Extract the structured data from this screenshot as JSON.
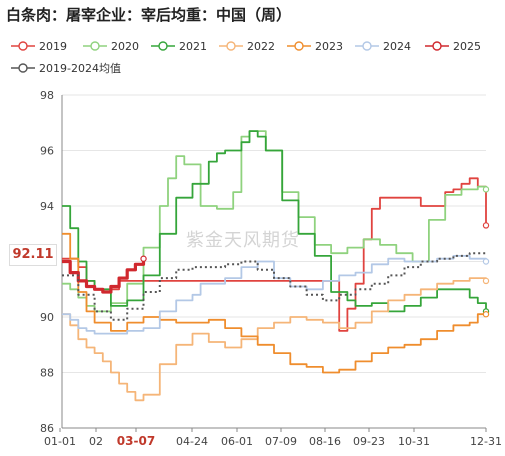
{
  "title": "白条肉：屠宰企业：宰后均重：中国（周）",
  "watermark": "紫金天风期货",
  "current_value_label": "92.11",
  "chart_data": {
    "type": "line",
    "y_range": [
      86,
      98
    ],
    "y_ticks": [
      "86",
      "88",
      "90",
      "92",
      "94",
      "96",
      "98"
    ],
    "x_ticks": [
      "01-01",
      "02",
      "03-07",
      "04-24",
      "06-01",
      "07-09",
      "08-16",
      "09-23",
      "10-31",
      "12-31"
    ],
    "highlight_x_tick": "03-07",
    "legend_position": "top",
    "series": [
      {
        "name": "2019",
        "color": "#e0433f",
        "style": "solid",
        "x": [
          0,
          2,
          3,
          4,
          5,
          6,
          7,
          34,
          35,
          36,
          37,
          38,
          39,
          40,
          42,
          44,
          46,
          47,
          48,
          49,
          50,
          51,
          52
        ],
        "y": [
          92.1,
          91.8,
          91.3,
          91.0,
          90.9,
          91.0,
          91.3,
          89.5,
          90.3,
          91.2,
          92.8,
          93.9,
          94.3,
          94.3,
          94.3,
          94.0,
          94.0,
          94.5,
          94.6,
          94.8,
          95.0,
          94.7,
          93.3
        ]
      },
      {
        "name": "2020",
        "color": "#8fd27e",
        "style": "solid",
        "x": [
          0,
          1,
          2,
          3,
          4,
          6,
          8,
          10,
          12,
          13,
          14,
          15,
          17,
          19,
          21,
          22,
          23,
          25,
          27,
          29,
          31,
          33,
          35,
          37,
          39,
          41,
          43,
          45,
          47,
          49,
          51,
          52
        ],
        "y": [
          91.2,
          91.0,
          90.7,
          90.4,
          90.2,
          90.5,
          91.2,
          92.5,
          94.0,
          95.0,
          95.8,
          95.5,
          94.0,
          93.9,
          94.5,
          96.5,
          96.7,
          96.0,
          94.5,
          93.6,
          92.6,
          92.3,
          92.5,
          92.8,
          92.6,
          92.3,
          92.0,
          93.5,
          94.4,
          94.6,
          94.7,
          94.6
        ]
      },
      {
        "name": "2021",
        "color": "#35a53a",
        "style": "solid",
        "x": [
          0,
          1,
          2,
          3,
          4,
          6,
          8,
          10,
          12,
          14,
          16,
          18,
          19,
          20,
          22,
          23,
          24,
          25,
          27,
          29,
          31,
          33,
          35,
          36,
          38,
          40,
          42,
          44,
          46,
          48,
          50,
          51,
          52
        ],
        "y": [
          94.0,
          93.2,
          92.0,
          91.3,
          91.0,
          90.4,
          90.6,
          91.5,
          93.0,
          94.3,
          94.8,
          95.6,
          95.9,
          96.0,
          96.3,
          96.7,
          96.5,
          96.0,
          94.2,
          93.0,
          92.2,
          90.9,
          90.6,
          90.4,
          90.5,
          90.2,
          90.4,
          90.7,
          91.0,
          91.0,
          90.7,
          90.5,
          90.2
        ]
      },
      {
        "name": "2022",
        "color": "#f5b578",
        "style": "solid",
        "x": [
          0,
          1,
          2,
          3,
          4,
          5,
          6,
          7,
          8,
          9,
          10,
          12,
          14,
          16,
          18,
          20,
          22,
          24,
          26,
          28,
          30,
          32,
          34,
          36,
          38,
          40,
          42,
          44,
          46,
          48,
          50,
          52
        ],
        "y": [
          90.1,
          89.7,
          89.2,
          88.9,
          88.7,
          88.4,
          88.0,
          87.6,
          87.3,
          87.0,
          87.2,
          88.3,
          89.0,
          89.4,
          89.1,
          88.9,
          89.2,
          89.6,
          89.8,
          90.0,
          89.9,
          89.8,
          89.6,
          89.8,
          90.2,
          90.6,
          90.8,
          91.0,
          91.2,
          91.3,
          91.4,
          91.3
        ]
      },
      {
        "name": "2023",
        "color": "#ef8d2d",
        "style": "solid",
        "x": [
          0,
          1,
          2,
          3,
          4,
          6,
          8,
          10,
          12,
          14,
          16,
          18,
          20,
          22,
          24,
          26,
          28,
          30,
          32,
          34,
          36,
          38,
          40,
          42,
          44,
          46,
          48,
          50,
          51,
          52
        ],
        "y": [
          93.0,
          92.1,
          90.9,
          90.2,
          89.8,
          89.5,
          89.8,
          90.0,
          89.9,
          89.8,
          89.8,
          89.9,
          89.6,
          89.3,
          89.0,
          88.7,
          88.3,
          88.2,
          88.0,
          88.1,
          88.4,
          88.7,
          88.9,
          89.0,
          89.2,
          89.5,
          89.7,
          89.8,
          90.1,
          90.1
        ]
      },
      {
        "name": "2024",
        "color": "#b3c8e6",
        "style": "solid",
        "x": [
          0,
          1,
          2,
          3,
          4,
          6,
          8,
          10,
          12,
          14,
          16,
          17,
          18,
          20,
          22,
          24,
          26,
          28,
          30,
          32,
          34,
          36,
          38,
          40,
          42,
          44,
          46,
          48,
          50,
          52
        ],
        "y": [
          90.1,
          89.9,
          89.6,
          89.5,
          89.4,
          89.4,
          89.5,
          89.6,
          90.2,
          90.6,
          90.8,
          91.2,
          91.2,
          91.4,
          91.8,
          92.0,
          91.4,
          91.1,
          91.0,
          91.3,
          91.5,
          91.6,
          91.9,
          92.1,
          92.0,
          92.0,
          92.1,
          92.2,
          92.1,
          92.0
        ]
      },
      {
        "name": "2025",
        "color": "#d0282e",
        "style": "solid",
        "width": 3.2,
        "x": [
          0,
          1,
          2,
          3,
          4,
          5,
          6,
          7,
          8,
          9,
          10
        ],
        "y": [
          92.0,
          91.6,
          91.3,
          91.1,
          91.0,
          90.9,
          91.1,
          91.4,
          91.7,
          91.9,
          92.1
        ]
      },
      {
        "name": "2019-2024均值",
        "color": "#555555",
        "style": "dotted",
        "x": [
          0,
          2,
          4,
          6,
          8,
          10,
          12,
          14,
          16,
          18,
          20,
          22,
          24,
          26,
          28,
          30,
          32,
          34,
          36,
          38,
          40,
          42,
          44,
          46,
          48,
          50,
          52
        ],
        "y": [
          91.5,
          90.8,
          90.2,
          89.9,
          90.3,
          90.9,
          91.4,
          91.7,
          91.8,
          91.8,
          91.9,
          92.0,
          91.7,
          91.4,
          91.1,
          90.8,
          90.6,
          90.8,
          91.0,
          91.2,
          91.5,
          91.8,
          92.0,
          92.1,
          92.2,
          92.3,
          92.3
        ]
      }
    ]
  }
}
